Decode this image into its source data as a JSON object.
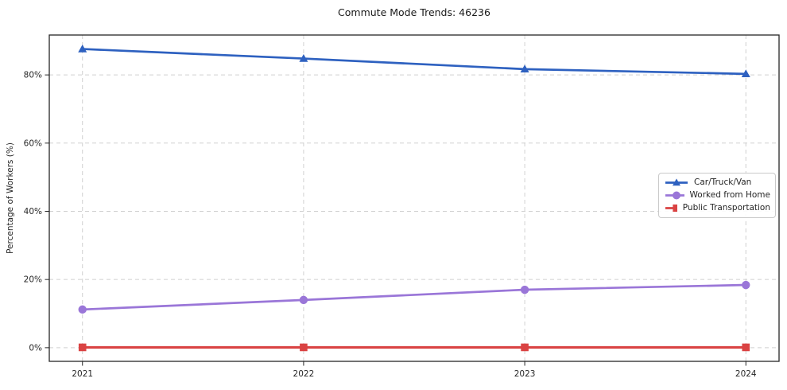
{
  "chart_data": {
    "type": "line",
    "title": "Commute Mode Trends: 46236",
    "xlabel": "",
    "ylabel": "Percentage of Workers (%)",
    "x": [
      2021,
      2022,
      2023,
      2024
    ],
    "x_tick_labels": [
      "2021",
      "2022",
      "2023",
      "2024"
    ],
    "y_ticks": [
      0,
      20,
      40,
      60,
      80
    ],
    "y_tick_labels": [
      "0%",
      "20%",
      "40%",
      "60%",
      "80%"
    ],
    "xlim": [
      2020.85,
      2024.15
    ],
    "ylim": [
      -4,
      91.7
    ],
    "grid": true,
    "grid_style": "dashed",
    "legend_position": "center-right",
    "series": [
      {
        "name": "Car/Truck/Van",
        "color": "#2e61c0",
        "marker": "triangle",
        "values": [
          87.6,
          84.8,
          81.7,
          80.3
        ]
      },
      {
        "name": "Worked from Home",
        "color": "#9a76d8",
        "marker": "circle",
        "values": [
          11.2,
          14.0,
          17.0,
          18.4
        ]
      },
      {
        "name": "Public Transportation",
        "color": "#da4343",
        "marker": "square",
        "values": [
          0.1,
          0.1,
          0.1,
          0.1
        ]
      }
    ]
  },
  "style": {
    "grid_color": "#d0d0d0",
    "spine_color": "#262626",
    "tick_color": "#262626"
  }
}
